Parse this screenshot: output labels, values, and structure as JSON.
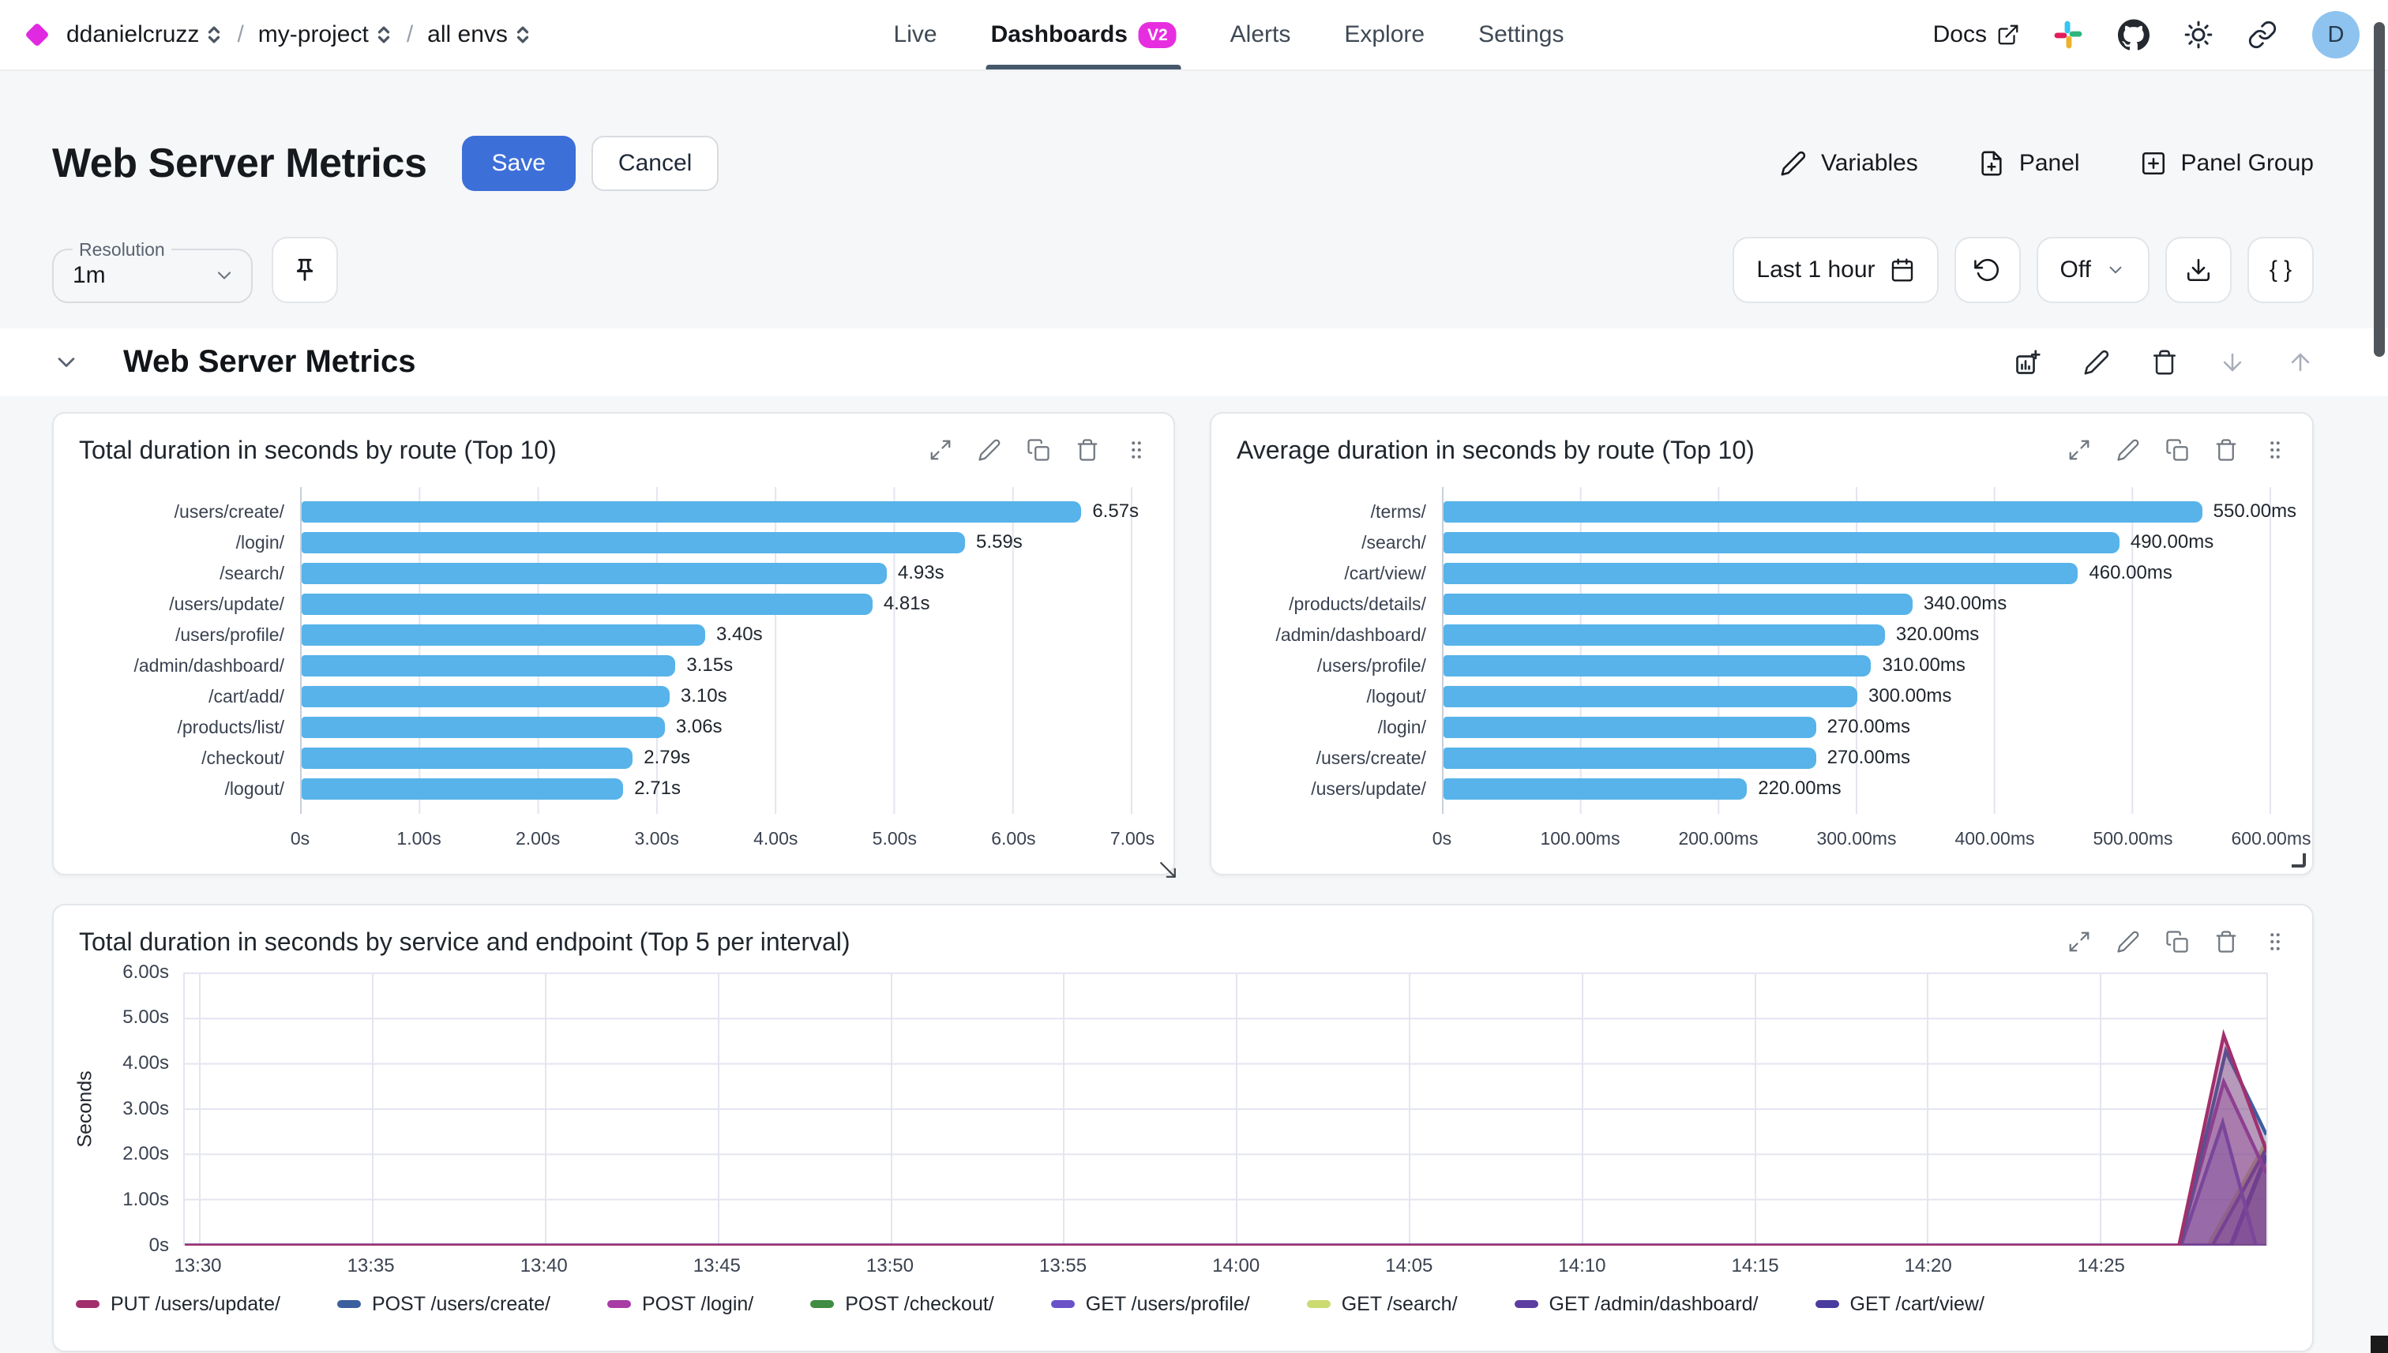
{
  "nav": {
    "breadcrumb": {
      "org": "ddanielcruzz",
      "project": "my-project",
      "env": "all envs",
      "sep": "/"
    },
    "tabs": [
      {
        "label": "Live"
      },
      {
        "label": "Dashboards",
        "badge": "V2"
      },
      {
        "label": "Alerts"
      },
      {
        "label": "Explore"
      },
      {
        "label": "Settings"
      }
    ],
    "docs_label": "Docs",
    "avatar_initial": "D"
  },
  "toolbar": {
    "title": "Web Server Metrics",
    "save": "Save",
    "cancel": "Cancel",
    "variables": "Variables",
    "panel": "Panel",
    "panel_group": "Panel Group"
  },
  "controls": {
    "resolution_label": "Resolution",
    "resolution_value": "1m",
    "time_range": "Last 1 hour",
    "refresh": "Off",
    "code": "{ }"
  },
  "section": {
    "title": "Web Server Metrics"
  },
  "colors": {
    "accent_magenta": "#E129E1",
    "save_blue": "#3D6FD8",
    "bar_blue": "#57B3E9",
    "tab_underline": "#46586B"
  },
  "chart_data": [
    {
      "type": "bar",
      "orientation": "horizontal",
      "title": "Total duration in seconds by route (Top 10)",
      "categories": [
        "/users/create/",
        "/login/",
        "/search/",
        "/users/update/",
        "/users/profile/",
        "/admin/dashboard/",
        "/cart/add/",
        "/products/list/",
        "/checkout/",
        "/logout/"
      ],
      "values": [
        6.57,
        5.59,
        4.93,
        4.81,
        3.4,
        3.15,
        3.1,
        3.06,
        2.79,
        2.71
      ],
      "value_labels": [
        "6.57s",
        "5.59s",
        "4.93s",
        "4.81s",
        "3.40s",
        "3.15s",
        "3.10s",
        "3.06s",
        "2.79s",
        "2.71s"
      ],
      "xlim": [
        0,
        7
      ],
      "x_ticks": [
        "0s",
        "1.00s",
        "2.00s",
        "3.00s",
        "4.00s",
        "5.00s",
        "6.00s",
        "7.00s"
      ],
      "bar_color": "#57B3E9"
    },
    {
      "type": "bar",
      "orientation": "horizontal",
      "title": "Average duration in seconds by route (Top 10)",
      "categories": [
        "/terms/",
        "/search/",
        "/cart/view/",
        "/products/details/",
        "/admin/dashboard/",
        "/users/profile/",
        "/logout/",
        "/login/",
        "/users/create/",
        "/users/update/"
      ],
      "values": [
        550,
        490,
        460,
        340,
        320,
        310,
        300,
        270,
        270,
        220
      ],
      "value_labels": [
        "550.00ms",
        "490.00ms",
        "460.00ms",
        "340.00ms",
        "320.00ms",
        "310.00ms",
        "300.00ms",
        "270.00ms",
        "270.00ms",
        "220.00ms"
      ],
      "xlim": [
        0,
        600
      ],
      "x_ticks": [
        "0s",
        "100.00ms",
        "200.00ms",
        "300.00ms",
        "400.00ms",
        "500.00ms",
        "600.00ms"
      ],
      "bar_color": "#57B3E9"
    },
    {
      "type": "area",
      "title": "Total duration in seconds by service and endpoint (Top 5 per interval)",
      "ylabel": "Seconds",
      "ylim": [
        0,
        6
      ],
      "y_ticks": [
        "0s",
        "1.00s",
        "2.00s",
        "3.00s",
        "4.00s",
        "5.00s",
        "6.00s"
      ],
      "x_ticks": [
        "13:30",
        "13:35",
        "13:40",
        "13:45",
        "13:50",
        "13:55",
        "14:00",
        "14:05",
        "14:10",
        "14:15",
        "14:20",
        "14:25"
      ],
      "x_tick_start_pct": 0.7,
      "x_tick_step_pct": 8.3,
      "note": "All series flat at 0s until ~14:24, spike near 14:26 clipped at right edge",
      "series": [
        {
          "name": "POST /checkout/",
          "color": "#3F8C42",
          "points": [
            [
              0,
              0
            ],
            [
              100,
              0
            ]
          ]
        },
        {
          "name": "GET /search/",
          "color": "#CBDB72",
          "points": [
            [
              0,
              0
            ],
            [
              97.2,
              0
            ],
            [
              100,
              2.3
            ]
          ]
        },
        {
          "name": "GET /admin/dashboard/",
          "color": "#5B3EA0",
          "points": [
            [
              0,
              0
            ],
            [
              97.4,
              0
            ],
            [
              100,
              2.15
            ]
          ]
        },
        {
          "name": "GET /cart/view/",
          "color": "#4A3C9E",
          "stroke": 2.8,
          "points": [
            [
              0,
              0
            ],
            [
              95.8,
              0
            ],
            [
              98.3,
              0
            ],
            [
              100,
              2.0
            ]
          ]
        },
        {
          "name": "GET /users/profile/",
          "color": "#6B51C8",
          "points": [
            [
              0,
              0
            ],
            [
              95.9,
              0
            ],
            [
              97.9,
              2.72
            ],
            [
              99.5,
              0
            ],
            [
              100,
              0
            ]
          ]
        },
        {
          "name": "POST /login/",
          "color": "#A83CA4",
          "points": [
            [
              0,
              0
            ],
            [
              95.8,
              0
            ],
            [
              97.95,
              3.62
            ],
            [
              100,
              1.6
            ]
          ]
        },
        {
          "name": "POST /users/create/",
          "color": "#3C5F9E",
          "points": [
            [
              0,
              0
            ],
            [
              95.85,
              0
            ],
            [
              98.05,
              4.3
            ],
            [
              100,
              2.45
            ]
          ]
        },
        {
          "name": "PUT /users/update/",
          "color": "#A1306D",
          "points": [
            [
              0,
              0
            ],
            [
              95.8,
              0
            ],
            [
              97.95,
              4.65
            ],
            [
              100,
              2.1
            ]
          ]
        }
      ],
      "legend": [
        {
          "label": "PUT /users/update/",
          "color": "#A1306D"
        },
        {
          "label": "POST /users/create/",
          "color": "#3C5F9E"
        },
        {
          "label": "POST /login/",
          "color": "#A83CA4"
        },
        {
          "label": "POST /checkout/",
          "color": "#3F8C42"
        },
        {
          "label": "GET /users/profile/",
          "color": "#6B51C8"
        },
        {
          "label": "GET /search/",
          "color": "#CBDB72"
        },
        {
          "label": "GET /admin/dashboard/",
          "color": "#5B3EA0"
        },
        {
          "label": "GET /cart/view/",
          "color": "#4A3C9E"
        }
      ]
    }
  ]
}
